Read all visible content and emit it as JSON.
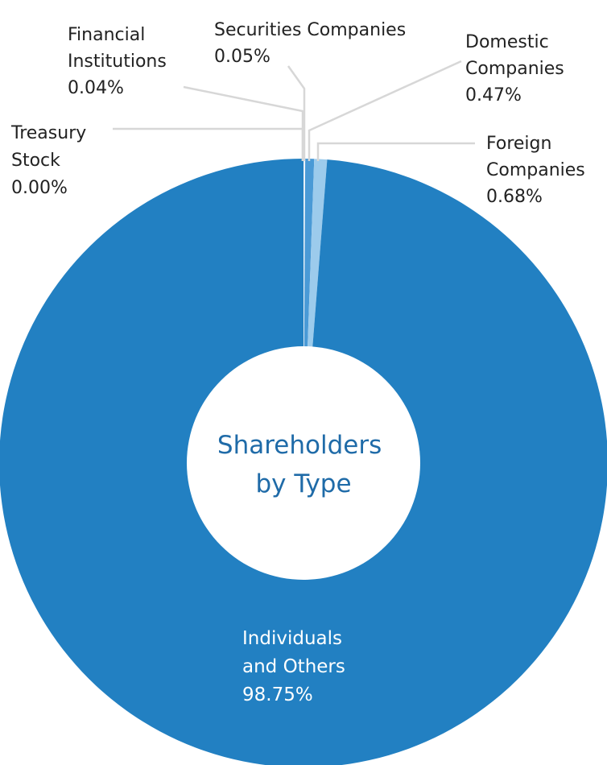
{
  "chart_data": {
    "type": "pie",
    "title": "Shareholders by Type",
    "slices": [
      {
        "key": "individuals",
        "name_lines": [
          "Individuals",
          "and Others"
        ],
        "value": 98.75,
        "label": "98.75%",
        "color": "#2280c2"
      },
      {
        "key": "treasury",
        "name_lines": [
          "Treasury",
          "Stock"
        ],
        "value": 0.0,
        "label": "0.00%",
        "color": "#2280c2"
      },
      {
        "key": "financial",
        "name_lines": [
          "Financial",
          "Institutions"
        ],
        "value": 0.04,
        "label": "0.04%",
        "color": "#eaf2f9"
      },
      {
        "key": "securities",
        "name_lines": [
          "Securities Companies"
        ],
        "value": 0.05,
        "label": "0.05%",
        "color": "#eaf2f9"
      },
      {
        "key": "domestic",
        "name_lines": [
          "Domestic",
          "Companies"
        ],
        "value": 0.47,
        "label": "0.47%",
        "color": "#4a9ad6"
      },
      {
        "key": "foreign",
        "name_lines": [
          "Foreign",
          "Companies"
        ],
        "value": 0.68,
        "label": "0.68%",
        "color": "#9ccbec"
      }
    ]
  }
}
